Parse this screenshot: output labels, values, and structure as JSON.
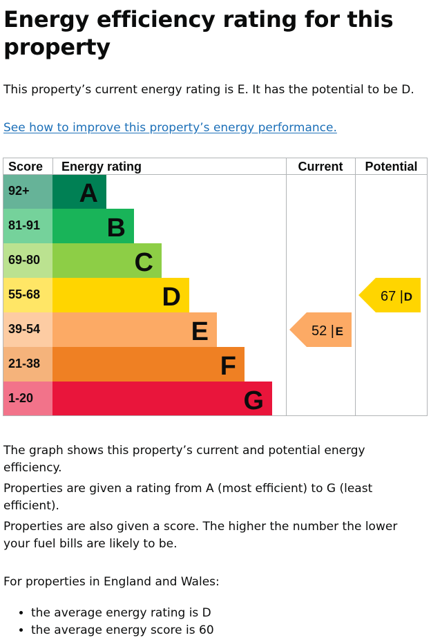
{
  "title": "Energy efficiency rating for this property",
  "intro": "This property’s current energy rating is E. It has the potential to be D.",
  "improve_link": "See how to improve this property’s energy performance.",
  "chart_data": {
    "type": "bar",
    "headers": {
      "score": "Score",
      "rating": "Energy rating",
      "current": "Current",
      "potential": "Potential"
    },
    "bands": [
      {
        "score": "92+",
        "letter": "A",
        "color": "#008054",
        "score_bg": "#66b398",
        "text_color": "#0b0c0c"
      },
      {
        "score": "81-91",
        "letter": "B",
        "color": "#19b459",
        "score_bg": "#75d29b",
        "text_color": "#0b0c0c"
      },
      {
        "score": "69-80",
        "letter": "C",
        "color": "#8dce46",
        "score_bg": "#bbe290",
        "text_color": "#0b0c0c"
      },
      {
        "score": "55-68",
        "letter": "D",
        "color": "#ffd500",
        "score_bg": "#ffe666",
        "text_color": "#0b0c0c"
      },
      {
        "score": "39-54",
        "letter": "E",
        "color": "#fcaa65",
        "score_bg": "#fdcca3",
        "text_color": "#0b0c0c"
      },
      {
        "score": "21-38",
        "letter": "F",
        "color": "#ef8023",
        "score_bg": "#f5b37b",
        "text_color": "#0b0c0c"
      },
      {
        "score": "1-20",
        "letter": "G",
        "color": "#e9153b",
        "score_bg": "#f2738a",
        "text_color": "#0b0c0c"
      }
    ],
    "current": {
      "score": 52,
      "letter": "E",
      "label": "52 |",
      "color": "#fcaa65"
    },
    "potential": {
      "score": 67,
      "letter": "D",
      "label": "67 |",
      "color": "#ffd500"
    },
    "grid_color": "#b1b4b6"
  },
  "p_graph": "The graph shows this property’s current and potential energy efficiency.",
  "p_ratings": "Properties are given a rating from A (most efficient) to G (least efficient).",
  "p_score": "Properties are also given a score. The higher the number the lower your fuel bills are likely to be.",
  "p_england": "For properties in England and Wales:",
  "bullets": [
    "the average energy rating is D",
    "the average energy score is 60"
  ]
}
